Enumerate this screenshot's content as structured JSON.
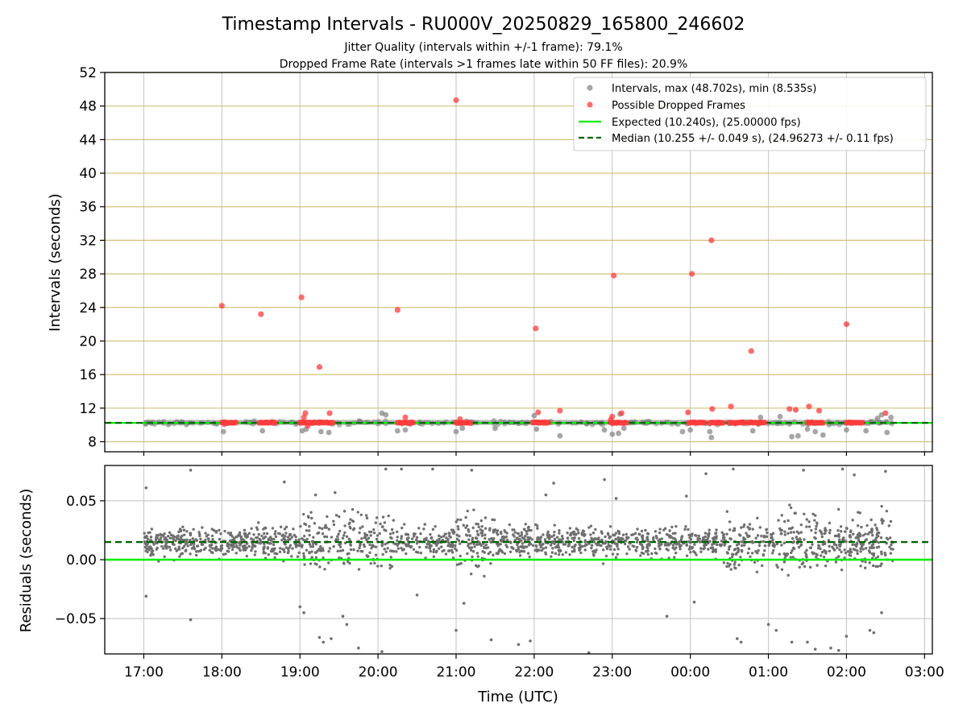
{
  "figure": {
    "title": "Timestamp Intervals - RU000V_20250829_165800_246602",
    "subtitle_1": "Jitter Quality (intervals within +/-1 frame): 79.1%",
    "subtitle_2": "Dropped Frame Rate (intervals >1 frames late within 50 FF files): 20.9%",
    "xlabel": "Time (UTC)"
  },
  "colors": {
    "intervals": "#808080",
    "dropped": "#ff3b3b",
    "expected": "#00ee00",
    "median": "#006400",
    "hgrid_top": "#d4c07a",
    "grid": "#cccccc"
  },
  "chart_data": [
    {
      "type": "scatter",
      "ylabel": "Intervals (seconds)",
      "ylim": [
        6.8,
        52
      ],
      "yticks": [
        8,
        12,
        16,
        20,
        24,
        28,
        32,
        36,
        40,
        44,
        48,
        52
      ],
      "x_units": "hours since 00:00 UTC 2025-08-29",
      "xlim": [
        16.5,
        27.1
      ],
      "xticks": [
        17,
        18,
        19,
        20,
        21,
        22,
        23,
        24,
        25,
        26,
        27
      ],
      "xtick_labels": [
        "17:00",
        "18:00",
        "19:00",
        "20:00",
        "21:00",
        "22:00",
        "23:00",
        "00:00",
        "01:00",
        "02:00",
        "03:00"
      ],
      "legend_position": "top-right",
      "legend": [
        "Intervals, max (48.702s), min (8.535s)",
        "Possible Dropped Frames",
        "Expected (10.240s), (25.00000 fps)",
        "Median (10.255 +/- 0.049 s), (24.96273 +/- 0.11 fps)"
      ],
      "expected_value": 10.24,
      "median_value": 10.255,
      "data_range_x": [
        17.0,
        26.6
      ],
      "series": [
        {
          "name": "Intervals, max (48.702s), min (8.535s)",
          "band": [
            10.0,
            10.6
          ],
          "outliers": [
            [
              18.02,
              9.2
            ],
            [
              18.52,
              9.3
            ],
            [
              19.03,
              9.3
            ],
            [
              19.08,
              9.5
            ],
            [
              19.27,
              9.2
            ],
            [
              19.37,
              9.1
            ],
            [
              20.1,
              11.2
            ],
            [
              20.25,
              9.3
            ],
            [
              20.35,
              9.4
            ],
            [
              21.0,
              9.2
            ],
            [
              21.08,
              9.6
            ],
            [
              22.03,
              9.5
            ],
            [
              22.33,
              8.7
            ],
            [
              22.9,
              9.4
            ],
            [
              23.0,
              8.9
            ],
            [
              23.08,
              9.0
            ],
            [
              23.15,
              9.6
            ],
            [
              23.9,
              9.2
            ],
            [
              24.0,
              9.4
            ],
            [
              24.25,
              9.2
            ],
            [
              24.27,
              8.5
            ],
            [
              24.8,
              9.3
            ],
            [
              24.9,
              10.9
            ],
            [
              25.15,
              11.0
            ],
            [
              25.3,
              8.6
            ],
            [
              25.38,
              8.7
            ],
            [
              25.5,
              9.5
            ],
            [
              25.6,
              9.2
            ],
            [
              25.7,
              8.8
            ],
            [
              26.0,
              9.4
            ],
            [
              26.25,
              9.3
            ],
            [
              26.4,
              10.8
            ],
            [
              26.45,
              11.2
            ],
            [
              26.52,
              9.1
            ],
            [
              26.57,
              10.9
            ],
            [
              20.05,
              11.4
            ],
            [
              22.0,
              11.1
            ],
            [
              23.1,
              11.3
            ],
            [
              21.5,
              9.6
            ],
            [
              17.1,
              10.2
            ],
            [
              17.5,
              10.3
            ],
            [
              17.9,
              10.2
            ]
          ]
        },
        {
          "name": "Possible Dropped Frames",
          "clusters": [
            [
              18.0,
              18.18
            ],
            [
              18.48,
              18.68
            ],
            [
              19.0,
              19.18
            ],
            [
              19.22,
              19.42
            ],
            [
              20.25,
              20.45
            ],
            [
              21.0,
              21.18
            ],
            [
              21.98,
              22.18
            ],
            [
              22.98,
              23.18
            ],
            [
              23.98,
              24.18
            ],
            [
              24.25,
              24.42
            ],
            [
              24.5,
              24.7
            ],
            [
              24.75,
              24.95
            ],
            [
              25.5,
              25.7
            ],
            [
              26.0,
              26.2
            ]
          ],
          "points": [
            [
              18.0,
              24.2
            ],
            [
              18.5,
              23.2
            ],
            [
              19.02,
              25.2
            ],
            [
              19.25,
              16.9
            ],
            [
              20.25,
              23.7
            ],
            [
              21.0,
              48.7
            ],
            [
              22.02,
              21.5
            ],
            [
              23.02,
              27.8
            ],
            [
              24.02,
              28.0
            ],
            [
              24.27,
              32.0
            ],
            [
              24.78,
              18.8
            ],
            [
              26.0,
              22.0
            ],
            [
              19.07,
              11.4
            ],
            [
              19.05,
              10.9
            ],
            [
              19.38,
              11.4
            ],
            [
              20.35,
              10.9
            ],
            [
              22.05,
              11.5
            ],
            [
              22.33,
              11.7
            ],
            [
              23.0,
              11.0
            ],
            [
              23.12,
              11.4
            ],
            [
              23.97,
              11.5
            ],
            [
              24.28,
              11.9
            ],
            [
              24.52,
              12.2
            ],
            [
              25.27,
              11.9
            ],
            [
              25.35,
              11.8
            ],
            [
              25.52,
              12.2
            ],
            [
              25.65,
              11.7
            ],
            [
              26.5,
              11.4
            ],
            [
              21.05,
              10.7
            ],
            [
              18.03,
              10.1
            ],
            [
              19.1,
              9.9
            ],
            [
              22.98,
              10.6
            ]
          ]
        }
      ]
    },
    {
      "type": "scatter",
      "ylabel": "Residuals (seconds)",
      "ylim": [
        -0.08,
        0.08
      ],
      "yticks": [
        -0.05,
        0.0,
        0.05
      ],
      "ytick_labels": [
        "−0.05",
        "0.00",
        "0.05"
      ],
      "x_units": "hours since 00:00 UTC 2025-08-29",
      "xlim": [
        16.5,
        27.1
      ],
      "expected_residual": 0.0,
      "median_residual": 0.015,
      "series": [
        {
          "name": "Residuals",
          "core_center": 0.015,
          "core_spread": 0.012,
          "noisy_segments": [
            [
              19.0,
              20.2
            ],
            [
              21.0,
              21.5
            ],
            [
              24.4,
              25.0
            ],
            [
              25.1,
              26.6
            ]
          ],
          "outliers": [
            [
              17.03,
              0.061
            ],
            [
              17.03,
              -0.031
            ],
            [
              17.6,
              -0.051
            ],
            [
              17.6,
              0.076
            ],
            [
              18.8,
              0.066
            ],
            [
              19.0,
              -0.04
            ],
            [
              19.05,
              -0.045
            ],
            [
              19.2,
              0.055
            ],
            [
              19.25,
              -0.066
            ],
            [
              19.3,
              -0.07
            ],
            [
              19.4,
              -0.067
            ],
            [
              19.55,
              -0.048
            ],
            [
              19.6,
              -0.055
            ],
            [
              19.75,
              -0.075
            ],
            [
              20.05,
              -0.078
            ],
            [
              20.1,
              0.077
            ],
            [
              20.3,
              0.077
            ],
            [
              20.5,
              -0.03
            ],
            [
              20.7,
              0.077
            ],
            [
              21.0,
              -0.06
            ],
            [
              21.1,
              -0.037
            ],
            [
              21.2,
              0.076
            ],
            [
              21.45,
              -0.068
            ],
            [
              21.8,
              -0.072
            ],
            [
              21.95,
              -0.069
            ],
            [
              22.15,
              0.055
            ],
            [
              22.7,
              -0.079
            ],
            [
              22.9,
              0.068
            ],
            [
              23.05,
              0.052
            ],
            [
              23.7,
              -0.048
            ],
            [
              24.05,
              -0.036
            ],
            [
              24.2,
              0.073
            ],
            [
              24.6,
              -0.067
            ],
            [
              24.65,
              -0.07
            ],
            [
              24.55,
              0.077
            ],
            [
              25.0,
              -0.055
            ],
            [
              25.1,
              -0.06
            ],
            [
              25.3,
              -0.07
            ],
            [
              25.5,
              -0.07
            ],
            [
              25.6,
              -0.076
            ],
            [
              25.8,
              -0.075
            ],
            [
              25.9,
              -0.077
            ],
            [
              26.0,
              -0.065
            ],
            [
              26.1,
              0.072
            ],
            [
              26.3,
              -0.06
            ],
            [
              26.35,
              -0.062
            ],
            [
              26.45,
              -0.045
            ],
            [
              26.5,
              0.075
            ],
            [
              25.45,
              0.076
            ],
            [
              25.95,
              0.077
            ],
            [
              22.25,
              0.065
            ],
            [
              23.95,
              0.054
            ],
            [
              20.6,
              0.03
            ],
            [
              19.45,
              0.057
            ]
          ]
        }
      ]
    }
  ]
}
